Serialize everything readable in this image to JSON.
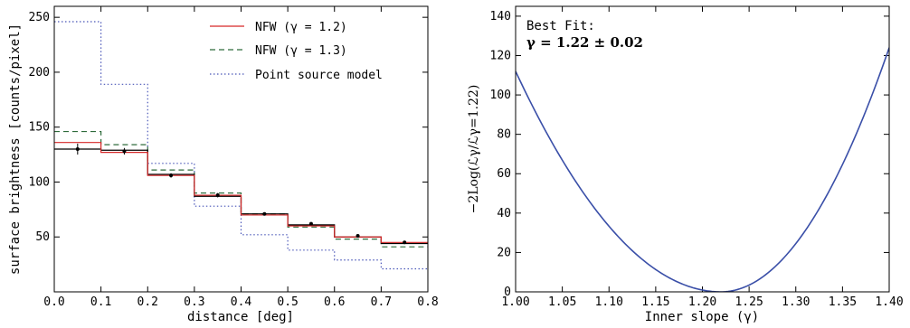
{
  "chart_data": [
    {
      "type": "line",
      "xlabel": "distance [deg]",
      "ylabel": "surface brightness [counts/pixel]",
      "xlim": [
        0.0,
        0.8
      ],
      "ylim": [
        0,
        260
      ],
      "xticks": [
        "0.0",
        "0.1",
        "0.2",
        "0.3",
        "0.4",
        "0.5",
        "0.6",
        "0.7",
        "0.8"
      ],
      "yticks": [
        "50",
        "100",
        "150",
        "200",
        "250"
      ],
      "bin_edges": [
        0.0,
        0.1,
        0.2,
        0.3,
        0.4,
        0.5,
        0.6,
        0.7,
        0.8
      ],
      "legend_position": "top-right",
      "series": [
        {
          "name": "",
          "style": "solid",
          "color": "#000000",
          "values": [
            130,
            129,
            107,
            87,
            71,
            61,
            50,
            44
          ]
        },
        {
          "name": "NFW (γ = 1.2)",
          "style": "solid",
          "color": "#d62728",
          "values": [
            136,
            127,
            106,
            88,
            70,
            60,
            50,
            45
          ]
        },
        {
          "name": "NFW (γ = 1.3)",
          "style": "dashed",
          "color": "#2e6b3b",
          "values": [
            146,
            134,
            111,
            90,
            71,
            59,
            48,
            41
          ]
        },
        {
          "name": "Point source model",
          "style": "dotted",
          "color": "#4a57b8",
          "values": [
            246,
            189,
            117,
            78,
            52,
            38,
            29,
            21
          ]
        }
      ],
      "data_points": {
        "x": [
          0.05,
          0.15,
          0.25,
          0.35,
          0.45,
          0.55,
          0.65,
          0.75
        ],
        "y": [
          130,
          128,
          106,
          88,
          71,
          62,
          51,
          45
        ],
        "err": [
          5,
          3,
          2,
          2,
          1,
          1,
          1,
          1
        ]
      }
    },
    {
      "type": "line",
      "xlabel": "Inner slope (γ)",
      "ylabel": "−2Log(ℒγ/ℒγ=1.22)",
      "xlim": [
        1.0,
        1.4
      ],
      "ylim": [
        0,
        145
      ],
      "xticks": [
        "1.00",
        "1.05",
        "1.10",
        "1.15",
        "1.20",
        "1.25",
        "1.30",
        "1.35",
        "1.40"
      ],
      "yticks": [
        "0",
        "20",
        "40",
        "60",
        "80",
        "100",
        "120",
        "140"
      ],
      "annotation": {
        "line1": "Best Fit:",
        "line2": "γ = 1.22 ± 0.02"
      },
      "curve": {
        "min_x": 1.22,
        "color": "#3a4fa8",
        "x": [
          1.0,
          1.4
        ],
        "y": [
          112,
          124
        ]
      }
    }
  ]
}
